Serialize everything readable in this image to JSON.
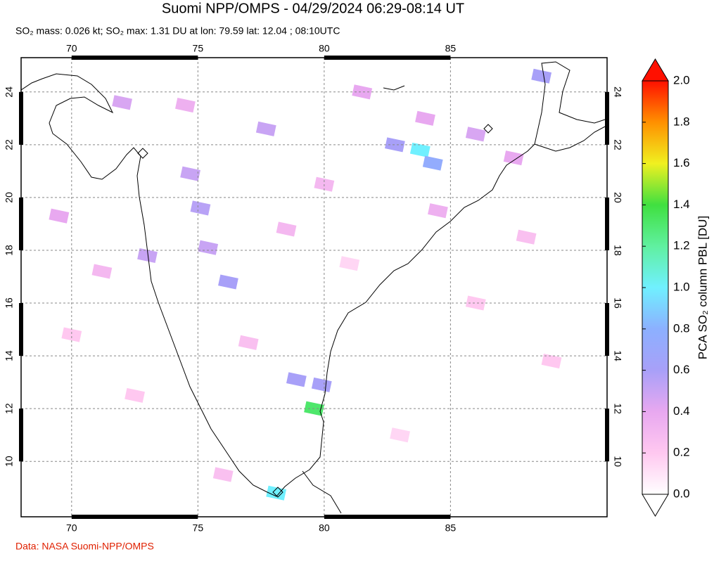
{
  "title": "Suomi NPP/OMPS - 04/29/2024 06:29-08:14 UT",
  "subtitle": "SO₂ mass: 0.026 kt; SO₂ max: 1.31 DU at lon: 79.59 lat: 12.04 ; 08:10UTC",
  "credit": "Data: NASA Suomi-NPP/OMPS",
  "map": {
    "lonlim": [
      68,
      91.2
    ],
    "latlim": [
      7.9,
      25.3
    ],
    "lonticks": [
      70,
      75,
      80,
      85
    ],
    "latticks": [
      10,
      12,
      14,
      16,
      18,
      20,
      22,
      24
    ],
    "pixels": [
      {
        "lon": 79.6,
        "lat": 12.0,
        "value": 1.31
      },
      {
        "lon": 83.8,
        "lat": 21.8,
        "value": 1.0
      },
      {
        "lon": 78.1,
        "lat": 8.8,
        "value": 1.0
      },
      {
        "lon": 84.3,
        "lat": 21.3,
        "value": 0.75
      },
      {
        "lon": 82.8,
        "lat": 22.0,
        "value": 0.6
      },
      {
        "lon": 88.6,
        "lat": 24.6,
        "value": 0.6
      },
      {
        "lon": 79.9,
        "lat": 12.9,
        "value": 0.6
      },
      {
        "lon": 78.9,
        "lat": 13.1,
        "value": 0.6
      },
      {
        "lon": 76.2,
        "lat": 16.8,
        "value": 0.6
      },
      {
        "lon": 75.1,
        "lat": 19.6,
        "value": 0.55
      },
      {
        "lon": 74.7,
        "lat": 20.9,
        "value": 0.5
      },
      {
        "lon": 73.0,
        "lat": 17.8,
        "value": 0.5
      },
      {
        "lon": 75.4,
        "lat": 18.1,
        "value": 0.5
      },
      {
        "lon": 77.7,
        "lat": 22.6,
        "value": 0.5
      },
      {
        "lon": 72.0,
        "lat": 23.6,
        "value": 0.45
      },
      {
        "lon": 69.5,
        "lat": 19.3,
        "value": 0.4
      },
      {
        "lon": 84.0,
        "lat": 23.0,
        "value": 0.4
      },
      {
        "lon": 86.0,
        "lat": 22.4,
        "value": 0.45
      },
      {
        "lon": 87.5,
        "lat": 21.5,
        "value": 0.4
      },
      {
        "lon": 81.5,
        "lat": 24.0,
        "value": 0.4
      },
      {
        "lon": 74.5,
        "lat": 23.5,
        "value": 0.35
      },
      {
        "lon": 80.0,
        "lat": 20.5,
        "value": 0.3
      },
      {
        "lon": 71.2,
        "lat": 17.2,
        "value": 0.3
      },
      {
        "lon": 77.0,
        "lat": 14.5,
        "value": 0.25
      },
      {
        "lon": 88.0,
        "lat": 18.5,
        "value": 0.25
      },
      {
        "lon": 86.0,
        "lat": 16.0,
        "value": 0.2
      },
      {
        "lon": 72.5,
        "lat": 12.5,
        "value": 0.2
      },
      {
        "lon": 83.0,
        "lat": 11.0,
        "value": 0.15
      },
      {
        "lon": 70.0,
        "lat": 14.8,
        "value": 0.2
      },
      {
        "lon": 89.0,
        "lat": 13.8,
        "value": 0.2
      },
      {
        "lon": 76.0,
        "lat": 9.5,
        "value": 0.25
      },
      {
        "lon": 81.0,
        "lat": 17.5,
        "value": 0.15
      },
      {
        "lon": 84.5,
        "lat": 19.5,
        "value": 0.35
      },
      {
        "lon": 78.5,
        "lat": 18.8,
        "value": 0.3
      }
    ]
  },
  "colorbar": {
    "label": "PCA SO₂ column PBL [DU]",
    "lim": [
      0,
      2
    ],
    "colormap": [
      "#ffffff",
      "#ffc8f0",
      "#e8a8f0",
      "#a8a0f8",
      "#8cb0ff",
      "#70f0ff",
      "#60f0a0",
      "#40e040",
      "#f0f020",
      "#ff9000",
      "#ff1000"
    ],
    "ticks": [
      {
        "value": 0,
        "label": "0.0"
      },
      {
        "value": 0.2,
        "label": "0.2"
      },
      {
        "value": 0.4,
        "label": "0.4"
      },
      {
        "value": 0.6,
        "label": "0.6"
      },
      {
        "value": 0.8,
        "label": "0.8"
      },
      {
        "value": 1,
        "label": "1.0"
      },
      {
        "value": 1.2,
        "label": "1.2"
      },
      {
        "value": 1.4,
        "label": "1.4"
      },
      {
        "value": 1.6,
        "label": "1.6"
      },
      {
        "value": 1.8,
        "label": "1.8"
      },
      {
        "value": 2,
        "label": "2.0"
      }
    ]
  }
}
